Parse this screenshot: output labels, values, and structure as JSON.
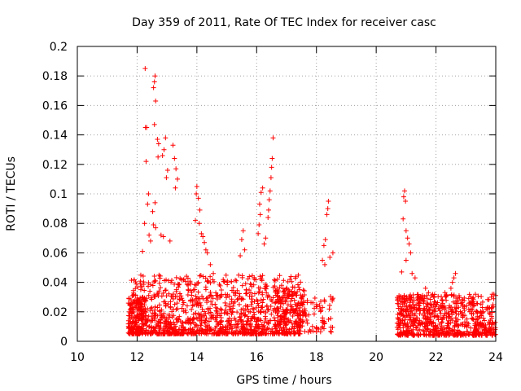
{
  "chart_data": {
    "type": "scatter",
    "title": "Day 359 of 2011, Rate Of TEC Index for receiver casc",
    "xlabel": "GPS time / hours",
    "ylabel": "ROTI / TECUs",
    "xlim": [
      10,
      24
    ],
    "ylim": [
      0,
      0.2
    ],
    "xticks": [
      10,
      12,
      14,
      16,
      18,
      20,
      22,
      24
    ],
    "yticks": [
      0,
      0.02,
      0.04,
      0.06,
      0.08,
      0.1,
      0.12,
      0.14,
      0.16,
      0.18,
      0.2
    ],
    "grid": true,
    "marker": "+",
    "series": [
      {
        "name": "ROTI",
        "color": "#ff0000",
        "density_seed": 359,
        "points": [
          [
            12.27,
            0.185
          ],
          [
            12.6,
            0.18
          ],
          [
            12.58,
            0.176
          ],
          [
            12.55,
            0.172
          ],
          [
            12.62,
            0.163
          ],
          [
            12.28,
            0.145
          ],
          [
            12.32,
            0.145
          ],
          [
            12.58,
            0.147
          ],
          [
            12.68,
            0.137
          ],
          [
            12.72,
            0.134
          ],
          [
            12.95,
            0.138
          ],
          [
            12.9,
            0.13
          ],
          [
            12.85,
            0.126
          ],
          [
            12.7,
            0.125
          ],
          [
            12.3,
            0.122
          ],
          [
            13.2,
            0.133
          ],
          [
            13.25,
            0.124
          ],
          [
            13.3,
            0.117
          ],
          [
            13.35,
            0.11
          ],
          [
            13.28,
            0.104
          ],
          [
            13.02,
            0.116
          ],
          [
            12.98,
            0.111
          ],
          [
            12.38,
            0.1
          ],
          [
            12.35,
            0.093
          ],
          [
            12.6,
            0.094
          ],
          [
            12.52,
            0.088
          ],
          [
            12.25,
            0.08
          ],
          [
            12.55,
            0.079
          ],
          [
            12.62,
            0.077
          ],
          [
            12.18,
            0.061
          ],
          [
            12.4,
            0.072
          ],
          [
            12.8,
            0.072
          ],
          [
            12.88,
            0.071
          ],
          [
            13.1,
            0.068
          ],
          [
            12.45,
            0.068
          ],
          [
            14.0,
            0.105
          ],
          [
            13.98,
            0.1
          ],
          [
            14.05,
            0.097
          ],
          [
            14.1,
            0.089
          ],
          [
            13.95,
            0.082
          ],
          [
            14.08,
            0.08
          ],
          [
            14.15,
            0.073
          ],
          [
            14.2,
            0.071
          ],
          [
            14.25,
            0.067
          ],
          [
            14.3,
            0.062
          ],
          [
            14.35,
            0.06
          ],
          [
            14.45,
            0.052
          ],
          [
            14.55,
            0.046
          ],
          [
            16.55,
            0.138
          ],
          [
            16.52,
            0.124
          ],
          [
            16.5,
            0.118
          ],
          [
            16.48,
            0.111
          ],
          [
            16.45,
            0.102
          ],
          [
            16.42,
            0.096
          ],
          [
            16.4,
            0.089
          ],
          [
            16.38,
            0.084
          ],
          [
            16.2,
            0.104
          ],
          [
            16.15,
            0.101
          ],
          [
            16.1,
            0.093
          ],
          [
            16.12,
            0.086
          ],
          [
            16.08,
            0.079
          ],
          [
            16.05,
            0.073
          ],
          [
            16.3,
            0.07
          ],
          [
            16.25,
            0.066
          ],
          [
            15.55,
            0.075
          ],
          [
            15.5,
            0.069
          ],
          [
            15.6,
            0.062
          ],
          [
            15.45,
            0.058
          ],
          [
            18.4,
            0.095
          ],
          [
            18.38,
            0.09
          ],
          [
            18.35,
            0.086
          ],
          [
            18.3,
            0.069
          ],
          [
            18.25,
            0.065
          ],
          [
            18.55,
            0.06
          ],
          [
            18.45,
            0.057
          ],
          [
            18.2,
            0.055
          ],
          [
            18.28,
            0.052
          ],
          [
            20.95,
            0.102
          ],
          [
            20.92,
            0.098
          ],
          [
            20.98,
            0.095
          ],
          [
            20.9,
            0.083
          ],
          [
            21.0,
            0.075
          ],
          [
            21.05,
            0.07
          ],
          [
            21.1,
            0.066
          ],
          [
            21.15,
            0.06
          ],
          [
            21.0,
            0.055
          ],
          [
            20.85,
            0.047
          ],
          [
            21.2,
            0.046
          ],
          [
            21.3,
            0.043
          ],
          [
            22.65,
            0.046
          ],
          [
            22.6,
            0.043
          ],
          [
            22.55,
            0.04
          ],
          [
            22.5,
            0.036
          ],
          [
            23.2,
            0.027
          ],
          [
            23.15,
            0.025
          ],
          [
            21.65,
            0.036
          ],
          [
            21.75,
            0.033
          ],
          [
            21.85,
            0.031
          ],
          [
            22.3,
            0.033
          ],
          [
            22.35,
            0.031
          ]
        ]
      }
    ]
  }
}
